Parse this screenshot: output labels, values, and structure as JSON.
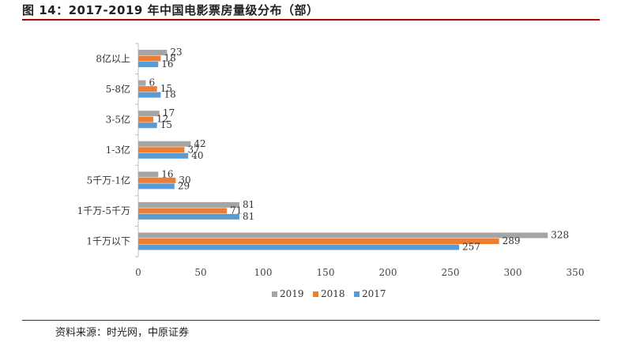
{
  "title": "图 14：2017-2019 年中国电影票房量级分布（部）",
  "source": "资料来源：时光网，中原证券",
  "colors": {
    "2019": "#a5a5a5",
    "2018": "#ed7d31",
    "2017": "#5b9bd5"
  },
  "chart_data": {
    "type": "bar",
    "orientation": "horizontal",
    "categories": [
      "8亿以上",
      "5-8亿",
      "3-5亿",
      "1-3亿",
      "5千万-1亿",
      "1千万-5千万",
      "1千万以下"
    ],
    "series": [
      {
        "name": "2019",
        "values": [
          23,
          6,
          17,
          42,
          16,
          81,
          328
        ]
      },
      {
        "name": "2018",
        "values": [
          18,
          15,
          12,
          37,
          30,
          71,
          289
        ]
      },
      {
        "name": "2017",
        "values": [
          16,
          18,
          15,
          40,
          29,
          81,
          257
        ]
      }
    ],
    "xlim": [
      0,
      350
    ],
    "xticks": [
      0,
      50,
      100,
      150,
      200,
      250,
      300,
      350
    ],
    "legend": "bottom",
    "legend_entries": [
      "2019",
      "2018",
      "2017"
    ],
    "grid": false
  }
}
